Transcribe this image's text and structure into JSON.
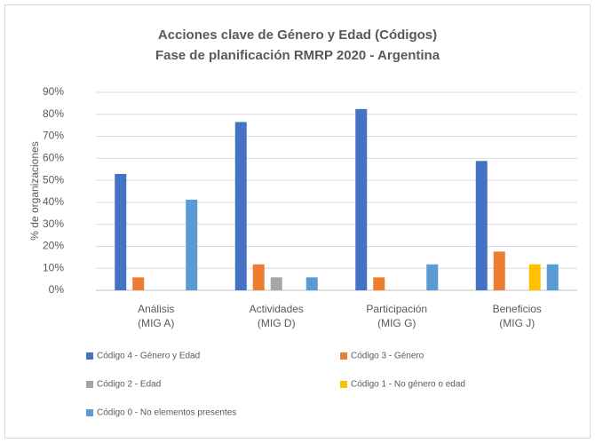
{
  "chart_data": {
    "type": "bar",
    "title": "Acciones clave de Género y Edad (Códigos)",
    "subtitle": "Fase de planificación RMRP 2020 - Argentina",
    "y_label": "% de organizaciones",
    "categories": [
      [
        "Análisis",
        "(MIG A)"
      ],
      [
        "Actividades",
        "(MIG D)"
      ],
      [
        "Participación",
        "(MIG G)"
      ],
      [
        "Beneficios",
        "(MIG J)"
      ]
    ],
    "series": [
      {
        "name": "Código 4 - Género y Edad",
        "color": "#4472c4",
        "values": [
          52.9,
          76.5,
          82.4,
          58.8
        ]
      },
      {
        "name": "Código 3 - Género",
        "color": "#ed7d31",
        "values": [
          5.9,
          11.8,
          5.9,
          17.6
        ]
      },
      {
        "name": "Código 2 - Edad",
        "color": "#a5a5a5",
        "values": [
          0,
          5.9,
          0,
          0
        ]
      },
      {
        "name": "Código 1 - No género o edad",
        "color": "#ffc000",
        "values": [
          0,
          0,
          0,
          11.8
        ]
      },
      {
        "name": "Código 0 - No elementos presentes",
        "color": "#5b9bd5",
        "values": [
          41.2,
          5.9,
          11.8,
          11.8
        ]
      }
    ],
    "ylim": [
      0,
      90
    ],
    "yticks": [
      {
        "value": 0,
        "label": "0%"
      },
      {
        "value": 10,
        "label": "10%"
      },
      {
        "value": 20,
        "label": "20%"
      },
      {
        "value": 30,
        "label": "30%"
      },
      {
        "value": 40,
        "label": "40%"
      },
      {
        "value": 50,
        "label": "50%"
      },
      {
        "value": 60,
        "label": "60%"
      },
      {
        "value": 70,
        "label": "70%"
      },
      {
        "value": 80,
        "label": "80%"
      },
      {
        "value": 90,
        "label": "90%"
      }
    ],
    "grid": true
  }
}
